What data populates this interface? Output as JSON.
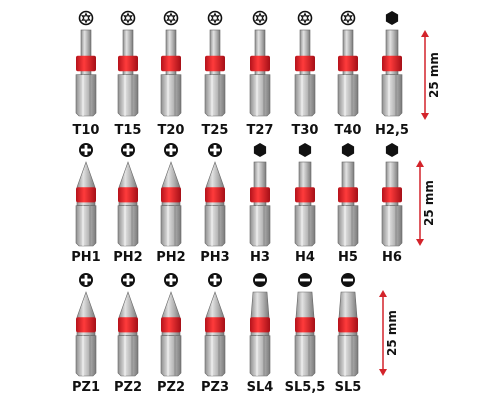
{
  "rows": [
    {
      "labels": [
        "T10",
        "T15",
        "T20",
        "T25",
        "T27",
        "T30",
        "T40",
        "H2,5"
      ],
      "dimension": "25 mm"
    },
    {
      "labels": [
        "PH1",
        "PH2",
        "PH2",
        "PH3",
        "H3",
        "H4",
        "H5",
        "H6"
      ],
      "dimension": "25 mm"
    },
    {
      "labels": [
        "PZ1",
        "PZ2",
        "PZ2",
        "PZ3",
        "SL4",
        "SL5,5",
        "SL5"
      ],
      "dimension": "25 mm"
    }
  ]
}
